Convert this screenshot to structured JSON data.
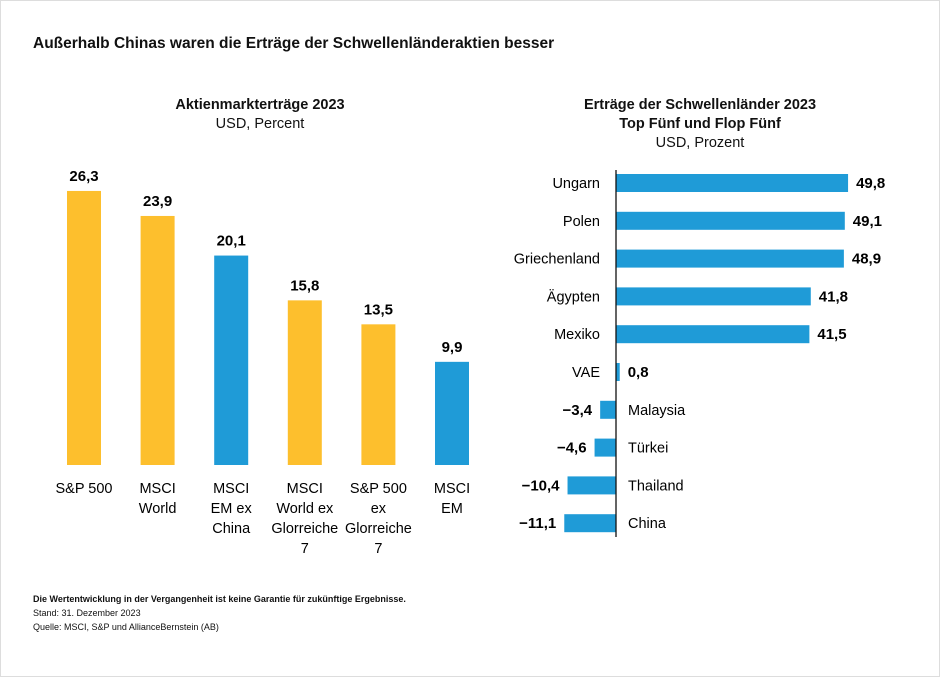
{
  "title": "Außerhalb Chinas waren die Erträge der Schwellenländeraktien besser",
  "colors": {
    "yellow": "#FDBF2D",
    "blue": "#1F9BD7"
  },
  "chart_data": [
    {
      "type": "bar",
      "title": "Aktienmarkterträge 2023",
      "subtitle": "USD, Percent",
      "categories": [
        "S&P 500",
        "MSCI World",
        "MSCI EM ex China",
        "MSCI World ex Glorreiche 7",
        "S&P 500 ex Glorreiche 7",
        "MSCI EM"
      ],
      "category_lines": [
        [
          "S&P 500"
        ],
        [
          "MSCI",
          "World"
        ],
        [
          "MSCI",
          "EM ex",
          "China"
        ],
        [
          "MSCI",
          "World ex",
          "Glorreiche",
          "7"
        ],
        [
          "S&P 500",
          "ex",
          "Glorreiche",
          "7"
        ],
        [
          "MSCI",
          "EM"
        ]
      ],
      "values": [
        26.3,
        23.9,
        20.1,
        15.8,
        13.5,
        9.9
      ],
      "labels": [
        "26,3",
        "23,9",
        "20,1",
        "15,8",
        "13,5",
        "9,9"
      ],
      "bar_colors": [
        "yellow",
        "yellow",
        "blue",
        "yellow",
        "yellow",
        "blue"
      ]
    },
    {
      "type": "bar",
      "orientation": "horizontal",
      "title": "Erträge der Schwellenländer 2023",
      "title2": "Top Fünf und Flop Fünf",
      "subtitle": "USD, Prozent",
      "categories": [
        "Ungarn",
        "Polen",
        "Griechenland",
        "Ägypten",
        "Mexiko",
        "VAE",
        "Malaysia",
        "Türkei",
        "Thailand",
        "China"
      ],
      "values": [
        49.8,
        49.1,
        48.9,
        41.8,
        41.5,
        0.8,
        -3.4,
        -4.6,
        -10.4,
        -11.1
      ],
      "labels": [
        "49,8",
        "49,1",
        "48,9",
        "41,8",
        "41,5",
        "0,8",
        "−3,4",
        "−4,6",
        "−10,4",
        "−11,1"
      ]
    }
  ],
  "footer": {
    "disclaimer": "Die Wertentwicklung in der Vergangenheit ist keine Garantie für zukünftige Ergebnisse.",
    "date": "Stand: 31. Dezember 2023",
    "source": "Quelle: MSCI, S&P und AllianceBernstein (AB)"
  }
}
